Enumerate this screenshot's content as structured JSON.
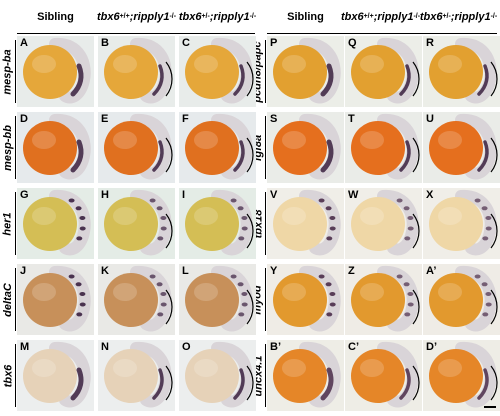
{
  "left_headers": [
    {
      "html": "Sibling"
    },
    {
      "html": "<i>tbx6</i><sup>+/+</sup><i>;</i><br><i>ripply1</i><sup>-/-</sup>"
    },
    {
      "html": "<i>tbx6</i><sup>+/-</sup><i>;</i><br><i>ripply1</i><sup>-/-</sup>"
    }
  ],
  "right_headers": [
    {
      "html": "Sibling"
    },
    {
      "html": "<i>tbx6</i><sup>+/+</sup><i>;</i><br><i>ripply1</i><sup>-/-</sup>"
    },
    {
      "html": "<i>tbx6</i><sup>+/-</sup><i>;</i><br><i>ripply1</i><sup>-/-</sup>"
    }
  ],
  "left_genes": [
    "mesp-ba",
    "mesp-bb",
    "her1",
    "deltaC",
    "tbx6"
  ],
  "right_genes": [
    "pcdh8/papc",
    "fgf8a",
    "tbx18",
    "myod",
    "uncx4.1"
  ],
  "panels": [
    [
      "A",
      "B",
      "C",
      "P",
      "Q",
      "R"
    ],
    [
      "D",
      "E",
      "F",
      "S",
      "T",
      "U"
    ],
    [
      "G",
      "H",
      "I",
      "V",
      "W",
      "X"
    ],
    [
      "J",
      "K",
      "L",
      "Y",
      "Z",
      "A’"
    ],
    [
      "M",
      "N",
      "O",
      "B’",
      "C’",
      "D’"
    ]
  ],
  "colors": {
    "rows": [
      {
        "bg": "#e8ecea",
        "yolk": "#e5a73a",
        "stain": "#3a2040"
      },
      {
        "bg": "#e6eaec",
        "yolk": "#e0701f",
        "stain": "#3a2040"
      },
      {
        "bg": "#e4ece6",
        "yolk": "#d4be55",
        "stain": "#3a2040"
      },
      {
        "bg": "#e9e9e6",
        "yolk": "#c7905a",
        "stain": "#3a2040"
      },
      {
        "bg": "#eceeee",
        "yolk": "#e6d2b8",
        "stain": "#3a2040"
      }
    ],
    "rows_right": [
      {
        "bg": "#eceee8",
        "yolk": "#e2a030",
        "stain": "#3a2040"
      },
      {
        "bg": "#eaece8",
        "yolk": "#e56f1e",
        "stain": "#3a2040"
      },
      {
        "bg": "#f0eee8",
        "yolk": "#efd7a6",
        "stain": "#4a2c4a"
      },
      {
        "bg": "#efece6",
        "yolk": "#e2992e",
        "stain": "#4a2c4a"
      },
      {
        "bg": "#eeede6",
        "yolk": "#e58628",
        "stain": "#4a2c4a"
      }
    ]
  }
}
